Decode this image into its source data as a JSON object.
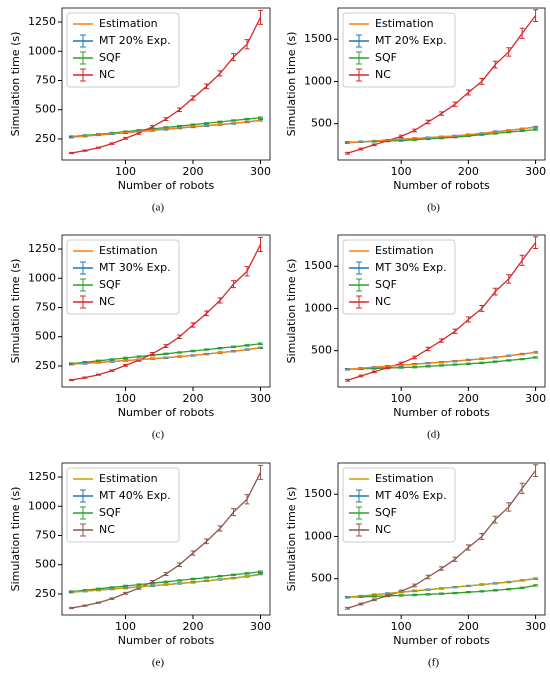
{
  "chart_data": [
    {
      "type": "line",
      "caption": "(a)",
      "xlabel": "Number of robots",
      "ylabel": "Simulation time (s)",
      "legend": "upper left",
      "x": [
        20,
        40,
        60,
        80,
        100,
        120,
        140,
        160,
        180,
        200,
        220,
        240,
        260,
        280,
        300
      ],
      "xlim": [
        6,
        314
      ],
      "xticks": [
        100,
        200,
        300
      ],
      "ylim": [
        70,
        1370
      ],
      "yticks": [
        250,
        500,
        750,
        1000,
        1250
      ],
      "series": [
        {
          "name": "Estimation",
          "color": "#ff7f0e",
          "values": [
            265,
            275,
            285,
            295,
            305,
            315,
            325,
            335,
            345,
            355,
            365,
            375,
            385,
            395,
            410
          ]
        },
        {
          "name": "MT 20% Exp.",
          "color": "#1f77b4",
          "values": [
            265,
            274,
            284,
            294,
            303,
            313,
            323,
            333,
            343,
            353,
            363,
            373,
            383,
            395,
            410
          ],
          "errors": [
            6,
            6,
            6,
            6,
            6,
            6,
            6,
            6,
            6,
            6,
            6,
            6,
            6,
            6,
            6
          ]
        },
        {
          "name": "SQF",
          "color": "#2ca02c",
          "values": [
            270,
            280,
            290,
            300,
            312,
            324,
            336,
            348,
            360,
            372,
            384,
            396,
            408,
            420,
            432
          ],
          "errors": [
            6,
            6,
            6,
            6,
            6,
            6,
            6,
            6,
            6,
            6,
            6,
            6,
            6,
            6,
            6
          ]
        },
        {
          "name": "NC",
          "color": "#d62728",
          "values": [
            130,
            150,
            175,
            210,
            255,
            300,
            355,
            420,
            500,
            600,
            700,
            810,
            950,
            1060,
            1290
          ],
          "errors": [
            5,
            5,
            5,
            6,
            8,
            10,
            10,
            12,
            15,
            18,
            20,
            22,
            30,
            40,
            60
          ]
        }
      ]
    },
    {
      "type": "line",
      "caption": "(b)",
      "xlabel": "Number of robots",
      "ylabel": "Simulation time (s)",
      "legend": "upper left",
      "x": [
        20,
        40,
        60,
        80,
        100,
        120,
        140,
        160,
        180,
        200,
        220,
        240,
        260,
        280,
        300
      ],
      "xlim": [
        6,
        314
      ],
      "xticks": [
        100,
        200,
        300
      ],
      "ylim": [
        70,
        1870
      ],
      "yticks": [
        500,
        1000,
        1500
      ],
      "series": [
        {
          "name": "Estimation",
          "color": "#ff7f0e",
          "values": [
            275,
            285,
            295,
            305,
            315,
            325,
            335,
            345,
            355,
            370,
            385,
            400,
            420,
            440,
            460
          ]
        },
        {
          "name": "MT 20% Exp.",
          "color": "#1f77b4",
          "values": [
            275,
            285,
            295,
            305,
            315,
            325,
            335,
            345,
            355,
            370,
            385,
            405,
            420,
            440,
            460
          ],
          "errors": [
            8,
            8,
            8,
            8,
            8,
            8,
            8,
            8,
            8,
            8,
            8,
            8,
            8,
            8,
            8
          ]
        },
        {
          "name": "SQF",
          "color": "#2ca02c",
          "values": [
            280,
            285,
            290,
            295,
            300,
            310,
            320,
            330,
            340,
            355,
            370,
            385,
            400,
            415,
            430
          ],
          "errors": [
            8,
            8,
            8,
            8,
            8,
            8,
            8,
            8,
            8,
            8,
            8,
            8,
            8,
            8,
            8
          ]
        },
        {
          "name": "NC",
          "color": "#d62728",
          "values": [
            150,
            200,
            250,
            300,
            350,
            420,
            520,
            620,
            730,
            870,
            1000,
            1200,
            1350,
            1570,
            1780
          ],
          "errors": [
            10,
            10,
            10,
            12,
            15,
            15,
            20,
            20,
            25,
            30,
            35,
            40,
            50,
            60,
            70
          ]
        }
      ]
    },
    {
      "type": "line",
      "caption": "(c)",
      "xlabel": "Number of robots",
      "ylabel": "Simulation time (s)",
      "legend": "upper left",
      "x": [
        20,
        40,
        60,
        80,
        100,
        120,
        140,
        160,
        180,
        200,
        220,
        240,
        260,
        280,
        300
      ],
      "xlim": [
        6,
        314
      ],
      "xticks": [
        100,
        200,
        300
      ],
      "ylim": [
        70,
        1370
      ],
      "yticks": [
        250,
        500,
        750,
        1000,
        1250
      ],
      "series": [
        {
          "name": "Estimation",
          "color": "#ff7f0e",
          "values": [
            265,
            272,
            280,
            288,
            296,
            304,
            312,
            320,
            330,
            340,
            352,
            364,
            376,
            390,
            405
          ]
        },
        {
          "name": "MT 30% Exp.",
          "color": "#1f77b4",
          "values": [
            265,
            272,
            280,
            288,
            296,
            304,
            312,
            320,
            330,
            340,
            352,
            364,
            376,
            390,
            405
          ],
          "errors": [
            6,
            6,
            6,
            6,
            6,
            6,
            6,
            6,
            6,
            6,
            6,
            6,
            6,
            6,
            6
          ]
        },
        {
          "name": "SQF",
          "color": "#2ca02c",
          "values": [
            270,
            282,
            294,
            306,
            318,
            330,
            342,
            354,
            366,
            378,
            390,
            402,
            414,
            426,
            440
          ],
          "errors": [
            6,
            6,
            6,
            6,
            6,
            6,
            6,
            6,
            6,
            6,
            6,
            6,
            6,
            6,
            6
          ]
        },
        {
          "name": "NC",
          "color": "#d62728",
          "values": [
            130,
            150,
            175,
            210,
            255,
            300,
            355,
            420,
            500,
            600,
            700,
            810,
            950,
            1060,
            1290
          ],
          "errors": [
            5,
            5,
            5,
            6,
            8,
            10,
            10,
            12,
            15,
            18,
            20,
            22,
            30,
            40,
            60
          ]
        }
      ]
    },
    {
      "type": "line",
      "caption": "(d)",
      "xlabel": "Number of robots",
      "ylabel": "Simulation time (s)",
      "legend": "upper left",
      "x": [
        20,
        40,
        60,
        80,
        100,
        120,
        140,
        160,
        180,
        200,
        220,
        240,
        260,
        280,
        300
      ],
      "xlim": [
        6,
        314
      ],
      "xticks": [
        100,
        200,
        300
      ],
      "ylim": [
        70,
        1870
      ],
      "yticks": [
        500,
        1000,
        1500
      ],
      "series": [
        {
          "name": "Estimation",
          "color": "#ff7f0e",
          "values": [
            280,
            292,
            304,
            316,
            328,
            340,
            352,
            364,
            376,
            390,
            405,
            420,
            440,
            460,
            480
          ]
        },
        {
          "name": "MT 30% Exp.",
          "color": "#1f77b4",
          "values": [
            280,
            292,
            304,
            316,
            328,
            340,
            352,
            364,
            376,
            390,
            405,
            420,
            440,
            460,
            480
          ],
          "errors": [
            8,
            8,
            8,
            8,
            8,
            8,
            8,
            8,
            8,
            8,
            8,
            8,
            8,
            8,
            8
          ]
        },
        {
          "name": "SQF",
          "color": "#2ca02c",
          "values": [
            280,
            285,
            290,
            295,
            300,
            305,
            315,
            325,
            335,
            345,
            355,
            370,
            385,
            400,
            420
          ],
          "errors": [
            8,
            8,
            8,
            8,
            8,
            8,
            8,
            8,
            8,
            8,
            8,
            8,
            8,
            8,
            8
          ]
        },
        {
          "name": "NC",
          "color": "#d62728",
          "values": [
            150,
            200,
            250,
            300,
            350,
            420,
            520,
            620,
            730,
            870,
            1000,
            1200,
            1350,
            1570,
            1780
          ],
          "errors": [
            10,
            10,
            10,
            12,
            15,
            15,
            20,
            20,
            25,
            30,
            35,
            40,
            50,
            60,
            70
          ]
        }
      ]
    },
    {
      "type": "line",
      "caption": "(e)",
      "xlabel": "Number of robots",
      "ylabel": "Simulation time (s)",
      "legend": "upper left",
      "x": [
        20,
        40,
        60,
        80,
        100,
        120,
        140,
        160,
        180,
        200,
        220,
        240,
        260,
        280,
        300
      ],
      "xlim": [
        6,
        314
      ],
      "xticks": [
        100,
        200,
        300
      ],
      "ylim": [
        70,
        1370
      ],
      "yticks": [
        250,
        500,
        750,
        1000,
        1250
      ],
      "series": [
        {
          "name": "Estimation",
          "color": "#c8a000",
          "values": [
            265,
            274,
            283,
            292,
            301,
            310,
            320,
            330,
            340,
            350,
            362,
            374,
            386,
            400,
            415
          ]
        },
        {
          "name": "MT 40% Exp.",
          "color": "#1f77b4",
          "values": [
            265,
            274,
            283,
            292,
            301,
            310,
            320,
            330,
            340,
            350,
            362,
            374,
            386,
            400,
            420
          ],
          "errors": [
            6,
            6,
            6,
            6,
            6,
            6,
            6,
            6,
            6,
            6,
            6,
            6,
            6,
            6,
            6
          ]
        },
        {
          "name": "SQF",
          "color": "#2ca02c",
          "values": [
            270,
            282,
            294,
            306,
            318,
            330,
            342,
            354,
            366,
            378,
            390,
            402,
            414,
            426,
            440
          ],
          "errors": [
            6,
            6,
            6,
            6,
            6,
            6,
            6,
            6,
            6,
            6,
            6,
            6,
            6,
            6,
            6
          ]
        },
        {
          "name": "NC",
          "color": "#8c564b",
          "values": [
            130,
            150,
            175,
            210,
            255,
            300,
            355,
            420,
            500,
            600,
            700,
            810,
            950,
            1060,
            1290
          ],
          "errors": [
            5,
            5,
            5,
            6,
            8,
            10,
            10,
            12,
            15,
            18,
            20,
            22,
            30,
            40,
            60
          ]
        }
      ]
    },
    {
      "type": "line",
      "caption": "(f)",
      "xlabel": "Number of robots",
      "ylabel": "Simulation time (s)",
      "legend": "upper left",
      "x": [
        20,
        40,
        60,
        80,
        100,
        120,
        140,
        160,
        180,
        200,
        220,
        240,
        260,
        280,
        300
      ],
      "xlim": [
        6,
        314
      ],
      "xticks": [
        100,
        200,
        300
      ],
      "ylim": [
        70,
        1870
      ],
      "yticks": [
        500,
        1000,
        1500
      ],
      "series": [
        {
          "name": "Estimation",
          "color": "#c8a000",
          "values": [
            280,
            295,
            310,
            325,
            340,
            355,
            370,
            385,
            400,
            415,
            430,
            445,
            460,
            480,
            500
          ]
        },
        {
          "name": "MT 40% Exp.",
          "color": "#1f77b4",
          "values": [
            280,
            295,
            310,
            325,
            340,
            355,
            370,
            385,
            400,
            415,
            430,
            445,
            460,
            480,
            500
          ],
          "errors": [
            8,
            8,
            8,
            8,
            8,
            8,
            8,
            8,
            8,
            8,
            8,
            8,
            8,
            8,
            8
          ]
        },
        {
          "name": "SQF",
          "color": "#2ca02c",
          "values": [
            280,
            285,
            290,
            296,
            302,
            308,
            315,
            322,
            330,
            340,
            350,
            362,
            376,
            392,
            420
          ],
          "errors": [
            8,
            8,
            8,
            8,
            8,
            8,
            8,
            8,
            8,
            8,
            8,
            8,
            8,
            8,
            8
          ]
        },
        {
          "name": "NC",
          "color": "#8c564b",
          "values": [
            150,
            200,
            250,
            300,
            350,
            420,
            520,
            620,
            730,
            870,
            1000,
            1200,
            1350,
            1570,
            1780
          ],
          "errors": [
            10,
            10,
            10,
            12,
            15,
            15,
            20,
            20,
            25,
            30,
            35,
            40,
            50,
            60,
            70
          ]
        }
      ]
    }
  ]
}
